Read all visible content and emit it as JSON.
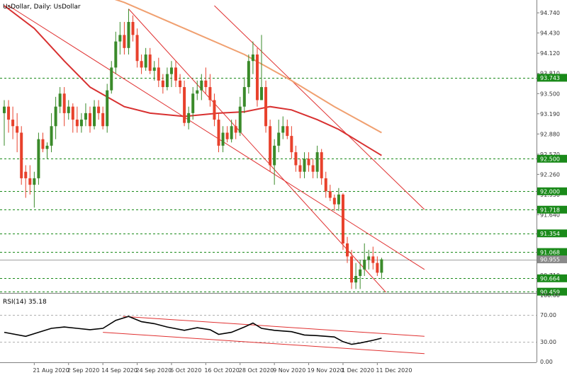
{
  "chart_data": [
    {
      "type": "candlestick",
      "title": "UsDollar, Daily:  UsDollar",
      "ylim": [
        90.45,
        94.85
      ],
      "yticks": [
        "94.740",
        "94.430",
        "94.120",
        "93.810",
        "93.500",
        "93.190",
        "92.880",
        "92.570",
        "92.260",
        "91.950",
        "91.640",
        "91.330",
        "91.020",
        "90.710",
        "90.400"
      ],
      "xticks": [
        "21 Aug 2020",
        "2 Sep 2020",
        "14 Sep 2020",
        "24 Sep 2020",
        "6 Oct 2020",
        "16 Oct 2020",
        "28 Oct 2020",
        "9 Nov 2020",
        "19 Nov 2020",
        "1 Dec 2020",
        "11 Dec 2020"
      ],
      "horizontal_levels": [
        93.743,
        92.5,
        92.0,
        91.718,
        91.354,
        91.068,
        90.955,
        90.664,
        90.459
      ],
      "up_color": "#3a8a2a",
      "down_color": "#e8412c",
      "level_color": "#1a8a1a",
      "channel_color": "#e03030",
      "candles": [
        {
          "date": "2020-08-12",
          "o": 93.2,
          "h": 93.4,
          "l": 92.7,
          "c": 93.3
        },
        {
          "date": "2020-08-13",
          "o": 93.3,
          "h": 93.4,
          "l": 92.9,
          "c": 93.1
        },
        {
          "date": "2020-08-14",
          "o": 93.1,
          "h": 93.3,
          "l": 92.8,
          "c": 93.0
        },
        {
          "date": "2020-08-17",
          "o": 93.0,
          "h": 93.2,
          "l": 92.6,
          "c": 92.9
        },
        {
          "date": "2020-08-18",
          "o": 92.9,
          "h": 93.0,
          "l": 92.1,
          "c": 92.2
        },
        {
          "date": "2020-08-19",
          "o": 92.3,
          "h": 92.4,
          "l": 91.9,
          "c": 92.2
        },
        {
          "date": "2020-08-20",
          "o": 92.2,
          "h": 92.4,
          "l": 91.95,
          "c": 92.1
        },
        {
          "date": "2020-08-21",
          "o": 92.1,
          "h": 92.3,
          "l": 91.75,
          "c": 92.2
        },
        {
          "date": "2020-08-24",
          "o": 92.2,
          "h": 92.9,
          "l": 92.1,
          "c": 92.8
        },
        {
          "date": "2020-08-25",
          "o": 92.8,
          "h": 92.9,
          "l": 92.6,
          "c": 92.65
        },
        {
          "date": "2020-08-26",
          "o": 92.65,
          "h": 92.75,
          "l": 92.5,
          "c": 92.7
        },
        {
          "date": "2020-08-27",
          "o": 92.7,
          "h": 93.2,
          "l": 92.6,
          "c": 93.0
        },
        {
          "date": "2020-08-28",
          "o": 93.0,
          "h": 93.45,
          "l": 92.8,
          "c": 93.3
        },
        {
          "date": "2020-08-31",
          "o": 93.3,
          "h": 93.6,
          "l": 93.2,
          "c": 93.5
        },
        {
          "date": "2020-09-01",
          "o": 93.5,
          "h": 93.6,
          "l": 93.0,
          "c": 93.2
        },
        {
          "date": "2020-09-02",
          "o": 93.2,
          "h": 93.4,
          "l": 93.1,
          "c": 93.3
        },
        {
          "date": "2020-09-03",
          "o": 93.3,
          "h": 93.35,
          "l": 92.9,
          "c": 93.1
        },
        {
          "date": "2020-09-04",
          "o": 93.1,
          "h": 93.3,
          "l": 92.9,
          "c": 93.0
        },
        {
          "date": "2020-09-07",
          "o": 93.0,
          "h": 93.2,
          "l": 92.9,
          "c": 93.1
        },
        {
          "date": "2020-09-08",
          "o": 93.1,
          "h": 93.35,
          "l": 93.0,
          "c": 93.2
        },
        {
          "date": "2020-09-09",
          "o": 93.2,
          "h": 93.3,
          "l": 92.9,
          "c": 93.0
        },
        {
          "date": "2020-09-10",
          "o": 93.0,
          "h": 93.4,
          "l": 92.95,
          "c": 93.3
        },
        {
          "date": "2020-09-11",
          "o": 93.3,
          "h": 93.4,
          "l": 93.1,
          "c": 93.2
        },
        {
          "date": "2020-09-14",
          "o": 93.2,
          "h": 93.3,
          "l": 92.95,
          "c": 93.0
        },
        {
          "date": "2020-09-15",
          "o": 93.0,
          "h": 93.65,
          "l": 92.9,
          "c": 93.55
        },
        {
          "date": "2020-09-16",
          "o": 93.55,
          "h": 94.0,
          "l": 93.5,
          "c": 93.9
        },
        {
          "date": "2020-09-17",
          "o": 93.9,
          "h": 94.45,
          "l": 93.8,
          "c": 94.3
        },
        {
          "date": "2020-09-18",
          "o": 94.3,
          "h": 94.6,
          "l": 94.1,
          "c": 94.4
        },
        {
          "date": "2020-09-21",
          "o": 94.4,
          "h": 94.6,
          "l": 94.1,
          "c": 94.2
        },
        {
          "date": "2020-09-22",
          "o": 94.2,
          "h": 94.8,
          "l": 94.1,
          "c": 94.6
        },
        {
          "date": "2020-09-23",
          "o": 94.6,
          "h": 94.7,
          "l": 94.3,
          "c": 94.4
        },
        {
          "date": "2020-09-24",
          "o": 94.4,
          "h": 94.5,
          "l": 93.9,
          "c": 94.0
        },
        {
          "date": "2020-09-25",
          "o": 94.0,
          "h": 94.1,
          "l": 93.8,
          "c": 93.9
        },
        {
          "date": "2020-09-28",
          "o": 93.9,
          "h": 94.2,
          "l": 93.85,
          "c": 94.1
        },
        {
          "date": "2020-09-29",
          "o": 94.1,
          "h": 94.2,
          "l": 93.8,
          "c": 93.85
        },
        {
          "date": "2020-09-30",
          "o": 93.85,
          "h": 94.0,
          "l": 93.7,
          "c": 93.9
        },
        {
          "date": "2020-10-01",
          "o": 93.9,
          "h": 94.05,
          "l": 93.6,
          "c": 93.7
        },
        {
          "date": "2020-10-02",
          "o": 93.7,
          "h": 93.8,
          "l": 93.5,
          "c": 93.6
        },
        {
          "date": "2020-10-05",
          "o": 93.6,
          "h": 93.9,
          "l": 93.55,
          "c": 93.8
        },
        {
          "date": "2020-10-06",
          "o": 93.8,
          "h": 94.0,
          "l": 93.6,
          "c": 93.9
        },
        {
          "date": "2020-10-07",
          "o": 93.9,
          "h": 94.0,
          "l": 93.6,
          "c": 93.7
        },
        {
          "date": "2020-10-08",
          "o": 93.7,
          "h": 93.8,
          "l": 93.5,
          "c": 93.6
        },
        {
          "date": "2020-10-09",
          "o": 93.6,
          "h": 93.7,
          "l": 93.0,
          "c": 93.05
        },
        {
          "date": "2020-10-12",
          "o": 93.05,
          "h": 93.3,
          "l": 92.95,
          "c": 93.2
        },
        {
          "date": "2020-10-13",
          "o": 93.2,
          "h": 93.6,
          "l": 93.1,
          "c": 93.5
        },
        {
          "date": "2020-10-14",
          "o": 93.5,
          "h": 93.7,
          "l": 93.4,
          "c": 93.55
        },
        {
          "date": "2020-10-15",
          "o": 93.55,
          "h": 93.8,
          "l": 93.4,
          "c": 93.7
        },
        {
          "date": "2020-10-16",
          "o": 93.7,
          "h": 93.9,
          "l": 93.5,
          "c": 93.6
        },
        {
          "date": "2020-10-19",
          "o": 93.6,
          "h": 93.8,
          "l": 93.3,
          "c": 93.4
        },
        {
          "date": "2020-10-20",
          "o": 93.4,
          "h": 93.5,
          "l": 93.0,
          "c": 93.1
        },
        {
          "date": "2020-10-21",
          "o": 93.1,
          "h": 93.2,
          "l": 92.6,
          "c": 92.7
        },
        {
          "date": "2020-10-22",
          "o": 92.7,
          "h": 93.0,
          "l": 92.6,
          "c": 92.9
        },
        {
          "date": "2020-10-23",
          "o": 92.9,
          "h": 93.0,
          "l": 92.75,
          "c": 92.8
        },
        {
          "date": "2020-10-26",
          "o": 92.8,
          "h": 93.1,
          "l": 92.75,
          "c": 93.0
        },
        {
          "date": "2020-10-27",
          "o": 93.0,
          "h": 93.1,
          "l": 92.8,
          "c": 92.9
        },
        {
          "date": "2020-10-28",
          "o": 92.9,
          "h": 93.45,
          "l": 92.85,
          "c": 93.3
        },
        {
          "date": "2020-10-29",
          "o": 93.3,
          "h": 93.75,
          "l": 93.2,
          "c": 93.6
        },
        {
          "date": "2020-10-30",
          "o": 93.6,
          "h": 94.1,
          "l": 93.5,
          "c": 94.0
        },
        {
          "date": "2020-11-02",
          "o": 94.0,
          "h": 94.3,
          "l": 93.8,
          "c": 94.1
        },
        {
          "date": "2020-11-03",
          "o": 94.1,
          "h": 94.2,
          "l": 93.3,
          "c": 93.4
        },
        {
          "date": "2020-11-04",
          "o": 93.4,
          "h": 94.4,
          "l": 93.4,
          "c": 93.6
        },
        {
          "date": "2020-11-05",
          "o": 93.6,
          "h": 93.7,
          "l": 92.9,
          "c": 93.0
        },
        {
          "date": "2020-11-06",
          "o": 93.0,
          "h": 93.1,
          "l": 92.3,
          "c": 92.4
        },
        {
          "date": "2020-11-09",
          "o": 92.4,
          "h": 92.8,
          "l": 92.1,
          "c": 92.7
        },
        {
          "date": "2020-11-10",
          "o": 92.7,
          "h": 93.1,
          "l": 92.6,
          "c": 92.9
        },
        {
          "date": "2020-11-11",
          "o": 92.9,
          "h": 93.15,
          "l": 92.8,
          "c": 93.0
        },
        {
          "date": "2020-11-12",
          "o": 93.0,
          "h": 93.1,
          "l": 92.8,
          "c": 92.85
        },
        {
          "date": "2020-11-13",
          "o": 92.85,
          "h": 93.0,
          "l": 92.5,
          "c": 92.6
        },
        {
          "date": "2020-11-16",
          "o": 92.6,
          "h": 92.7,
          "l": 92.3,
          "c": 92.4
        },
        {
          "date": "2020-11-17",
          "o": 92.4,
          "h": 92.5,
          "l": 92.2,
          "c": 92.3
        },
        {
          "date": "2020-11-18",
          "o": 92.3,
          "h": 92.6,
          "l": 92.2,
          "c": 92.5
        },
        {
          "date": "2020-11-19",
          "o": 92.5,
          "h": 92.6,
          "l": 92.3,
          "c": 92.4
        },
        {
          "date": "2020-11-20",
          "o": 92.4,
          "h": 92.5,
          "l": 92.2,
          "c": 92.3
        },
        {
          "date": "2020-11-23",
          "o": 92.3,
          "h": 92.7,
          "l": 92.2,
          "c": 92.6
        },
        {
          "date": "2020-11-24",
          "o": 92.6,
          "h": 92.65,
          "l": 92.1,
          "c": 92.2
        },
        {
          "date": "2020-11-25",
          "o": 92.2,
          "h": 92.3,
          "l": 91.9,
          "c": 92.0
        },
        {
          "date": "2020-11-26",
          "o": 92.0,
          "h": 92.1,
          "l": 91.85,
          "c": 91.9
        },
        {
          "date": "2020-11-27",
          "o": 91.9,
          "h": 91.95,
          "l": 91.7,
          "c": 91.8
        },
        {
          "date": "2020-11-30",
          "o": 91.8,
          "h": 92.05,
          "l": 91.7,
          "c": 91.95
        },
        {
          "date": "2020-12-01",
          "o": 91.95,
          "h": 91.97,
          "l": 91.1,
          "c": 91.2
        },
        {
          "date": "2020-12-02",
          "o": 91.2,
          "h": 91.3,
          "l": 90.9,
          "c": 91.0
        },
        {
          "date": "2020-12-03",
          "o": 91.0,
          "h": 91.1,
          "l": 90.5,
          "c": 90.6
        },
        {
          "date": "2020-12-04",
          "o": 90.6,
          "h": 90.9,
          "l": 90.5,
          "c": 90.7
        },
        {
          "date": "2020-12-07",
          "o": 90.7,
          "h": 90.95,
          "l": 90.5,
          "c": 90.8
        },
        {
          "date": "2020-12-08",
          "o": 90.8,
          "h": 91.2,
          "l": 90.7,
          "c": 90.95
        },
        {
          "date": "2020-12-09",
          "o": 90.95,
          "h": 91.1,
          "l": 90.8,
          "c": 91.0
        },
        {
          "date": "2020-12-10",
          "o": 91.0,
          "h": 91.15,
          "l": 90.8,
          "c": 90.9
        },
        {
          "date": "2020-12-11",
          "o": 90.9,
          "h": 91.0,
          "l": 90.7,
          "c": 90.75
        },
        {
          "date": "2020-12-14",
          "o": 90.75,
          "h": 90.98,
          "l": 90.65,
          "c": 90.955
        }
      ],
      "moving_averages": [
        {
          "color": "#f0a070",
          "points": [
            [
              "2020-08-12",
              95.5
            ],
            [
              "2020-09-01",
              95.2
            ],
            [
              "2020-09-21",
              94.9
            ],
            [
              "2020-10-09",
              94.5
            ],
            [
              "2020-10-29",
              94.1
            ],
            [
              "2020-11-13",
              93.7
            ],
            [
              "2020-11-27",
              93.3
            ],
            [
              "2020-12-14",
              92.9
            ]
          ]
        },
        {
          "color": "#d83030",
          "points": [
            [
              "2020-08-12",
              94.85
            ],
            [
              "2020-08-21",
              94.5
            ],
            [
              "2020-09-01",
              94.0
            ],
            [
              "2020-09-09",
              93.6
            ],
            [
              "2020-09-21",
              93.3
            ],
            [
              "2020-09-29",
              93.2
            ],
            [
              "2020-10-09",
              93.15
            ],
            [
              "2020-10-21",
              93.2
            ],
            [
              "2020-10-29",
              93.22
            ],
            [
              "2020-11-06",
              93.3
            ],
            [
              "2020-11-13",
              93.25
            ],
            [
              "2020-11-23",
              93.1
            ],
            [
              "2020-11-30",
              92.95
            ],
            [
              "2020-12-07",
              92.75
            ],
            [
              "2020-12-14",
              92.55
            ]
          ]
        }
      ],
      "channel_lines": [
        {
          "from": [
            "2020-09-22",
            94.8
          ],
          "to": [
            "2020-12-15",
            90.45
          ]
        },
        {
          "from": [
            "2020-10-20",
            94.85
          ],
          "to": [
            "2020-12-28",
            91.72
          ]
        },
        {
          "from": [
            "2020-08-13",
            94.85
          ],
          "to": [
            "2020-12-28",
            90.8
          ]
        }
      ]
    },
    {
      "type": "line",
      "title": "RSI(14) 35.18",
      "ylim": [
        0,
        100
      ],
      "yticks": [
        "100.00",
        "70.00",
        "30.00",
        "0.00"
      ],
      "levels": [
        70,
        30
      ],
      "x": [
        "2020-08-12",
        "2020-08-19",
        "2020-08-24",
        "2020-08-27",
        "2020-09-01",
        "2020-09-04",
        "2020-09-09",
        "2020-09-14",
        "2020-09-17",
        "2020-09-22",
        "2020-09-25",
        "2020-09-30",
        "2020-10-05",
        "2020-10-09",
        "2020-10-14",
        "2020-10-19",
        "2020-10-21",
        "2020-10-26",
        "2020-10-29",
        "2020-11-02",
        "2020-11-04",
        "2020-11-09",
        "2020-11-13",
        "2020-11-18",
        "2020-11-23",
        "2020-11-27",
        "2020-12-01",
        "2020-12-03",
        "2020-12-07",
        "2020-12-10",
        "2020-12-14"
      ],
      "series": [
        {
          "values": [
            44,
            38,
            44,
            50,
            52,
            50,
            48,
            50,
            62,
            68,
            60,
            57,
            52,
            47,
            51,
            48,
            41,
            44,
            52,
            58,
            50,
            47,
            45,
            40,
            39,
            37,
            30,
            26,
            28,
            32,
            35.18
          ]
        }
      ],
      "trend_lines": [
        {
          "from": [
            "2020-09-20",
            68
          ],
          "to": [
            "2020-12-28",
            38
          ]
        },
        {
          "from": [
            "2020-09-14",
            44
          ],
          "to": [
            "2020-12-28",
            12
          ]
        }
      ]
    }
  ]
}
